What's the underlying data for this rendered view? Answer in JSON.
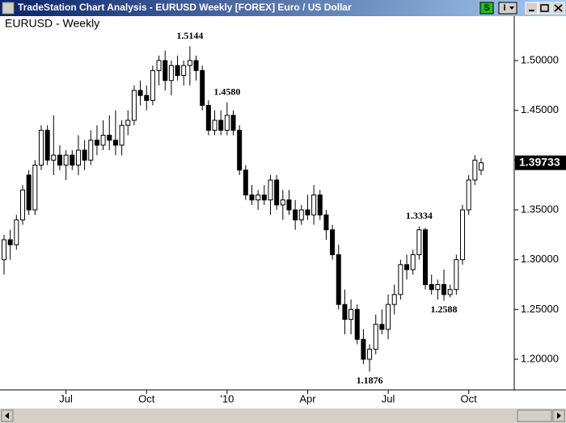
{
  "window": {
    "title": "TradeStation Chart Analysis - EURUSD Weekly [FOREX] Euro / US Dollar",
    "buttons": [
      "S",
      "I"
    ]
  },
  "chart_data": {
    "type": "candlestick",
    "title": "EURUSD - Weekly",
    "categories": [
      null,
      null,
      null,
      null,
      null,
      null,
      null,
      null,
      null,
      null,
      "Jul",
      null,
      null,
      null,
      null,
      null,
      null,
      null,
      null,
      null,
      null,
      null,
      null,
      "Oct",
      null,
      null,
      null,
      null,
      null,
      null,
      null,
      null,
      null,
      null,
      null,
      null,
      "'10",
      null,
      null,
      null,
      null,
      null,
      null,
      null,
      null,
      null,
      null,
      null,
      null,
      "Apr",
      null,
      null,
      null,
      null,
      null,
      null,
      null,
      null,
      null,
      null,
      null,
      null,
      "Jul",
      null,
      null,
      null,
      null,
      null,
      null,
      null,
      null,
      null,
      null,
      null,
      null,
      "Oct",
      null,
      null
    ],
    "open": [
      1.3,
      1.32,
      1.315,
      1.34,
      1.385,
      1.35,
      1.395,
      1.43,
      1.4,
      1.405,
      1.395,
      1.405,
      1.395,
      1.41,
      1.4,
      1.42,
      1.415,
      1.425,
      1.42,
      1.415,
      1.435,
      1.44,
      1.47,
      1.465,
      1.46,
      1.49,
      1.5,
      1.48,
      1.495,
      1.485,
      1.495,
      1.5,
      1.49,
      1.455,
      1.43,
      1.44,
      1.43,
      1.445,
      1.43,
      1.39,
      1.365,
      1.36,
      1.365,
      1.36,
      1.38,
      1.355,
      1.36,
      1.35,
      1.34,
      1.35,
      1.345,
      1.365,
      1.345,
      1.33,
      1.305,
      1.255,
      1.24,
      1.25,
      1.22,
      1.2,
      1.21,
      1.235,
      1.23,
      1.255,
      1.265,
      1.295,
      1.29,
      1.305,
      1.33,
      1.275,
      1.27,
      1.275,
      1.265,
      1.27,
      1.3,
      1.35,
      1.38,
      1.39
    ],
    "high": [
      1.325,
      1.33,
      1.345,
      1.375,
      1.39,
      1.4,
      1.435,
      1.435,
      1.445,
      1.415,
      1.41,
      1.41,
      1.425,
      1.42,
      1.43,
      1.435,
      1.44,
      1.445,
      1.45,
      1.44,
      1.45,
      1.475,
      1.48,
      1.475,
      1.495,
      1.505,
      1.51,
      1.5,
      1.505,
      1.5,
      1.5144,
      1.505,
      1.495,
      1.46,
      1.45,
      1.45,
      1.458,
      1.45,
      1.435,
      1.395,
      1.375,
      1.37,
      1.375,
      1.385,
      1.385,
      1.37,
      1.37,
      1.36,
      1.355,
      1.365,
      1.375,
      1.37,
      1.35,
      1.335,
      1.315,
      1.27,
      1.26,
      1.255,
      1.23,
      1.215,
      1.245,
      1.25,
      1.265,
      1.275,
      1.3,
      1.305,
      1.31,
      1.3334,
      1.332,
      1.285,
      1.28,
      1.29,
      1.275,
      1.305,
      1.355,
      1.385,
      1.405,
      1.402
    ],
    "low": [
      1.285,
      1.3,
      1.31,
      1.335,
      1.345,
      1.345,
      1.39,
      1.395,
      1.385,
      1.39,
      1.38,
      1.39,
      1.385,
      1.39,
      1.395,
      1.405,
      1.41,
      1.41,
      1.405,
      1.405,
      1.425,
      1.435,
      1.455,
      1.45,
      1.455,
      1.475,
      1.47,
      1.465,
      1.48,
      1.475,
      1.475,
      1.48,
      1.45,
      1.425,
      1.425,
      1.425,
      1.425,
      1.425,
      1.385,
      1.36,
      1.355,
      1.35,
      1.355,
      1.345,
      1.35,
      1.34,
      1.345,
      1.33,
      1.335,
      1.34,
      1.335,
      1.34,
      1.32,
      1.3,
      1.25,
      1.225,
      1.225,
      1.215,
      1.195,
      1.1876,
      1.205,
      1.225,
      1.22,
      1.245,
      1.26,
      1.28,
      1.285,
      1.3,
      1.27,
      1.265,
      1.26,
      1.2588,
      1.262,
      1.265,
      1.295,
      1.345,
      1.375,
      1.385
    ],
    "close": [
      1.32,
      1.315,
      1.34,
      1.37,
      1.35,
      1.395,
      1.43,
      1.4,
      1.405,
      1.395,
      1.405,
      1.395,
      1.41,
      1.4,
      1.42,
      1.415,
      1.425,
      1.42,
      1.415,
      1.435,
      1.44,
      1.47,
      1.465,
      1.46,
      1.49,
      1.5,
      1.48,
      1.495,
      1.485,
      1.495,
      1.5,
      1.49,
      1.455,
      1.43,
      1.44,
      1.43,
      1.445,
      1.43,
      1.39,
      1.365,
      1.36,
      1.365,
      1.36,
      1.38,
      1.355,
      1.36,
      1.35,
      1.34,
      1.35,
      1.345,
      1.365,
      1.345,
      1.33,
      1.305,
      1.255,
      1.24,
      1.25,
      1.22,
      1.2,
      1.21,
      1.235,
      1.23,
      1.255,
      1.265,
      1.295,
      1.29,
      1.305,
      1.33,
      1.275,
      1.27,
      1.275,
      1.265,
      1.27,
      1.3,
      1.35,
      1.38,
      1.4,
      1.39733
    ],
    "ylim": [
      1.17,
      1.543
    ],
    "yticks": [
      {
        "value": 1.2,
        "label": "1.20000"
      },
      {
        "value": 1.25,
        "label": "1.25000"
      },
      {
        "value": 1.3,
        "label": "1.30000"
      },
      {
        "value": 1.35,
        "label": "1.35000"
      },
      {
        "value": 1.4,
        "label": "1.40000"
      },
      {
        "value": 1.45,
        "label": "1.45000"
      },
      {
        "value": 1.5,
        "label": "1.50000"
      }
    ],
    "last_price": 1.39733,
    "annotations": [
      {
        "value": 1.5144,
        "label": "1.5144"
      },
      {
        "value": 1.458,
        "label": "1.4580"
      },
      {
        "value": 1.3334,
        "label": "1.3334"
      },
      {
        "value": 1.2588,
        "label": "1.2588"
      },
      {
        "value": 1.1876,
        "label": "1.1876"
      }
    ],
    "up_color": "#ffffff",
    "down_color": "#000000"
  }
}
